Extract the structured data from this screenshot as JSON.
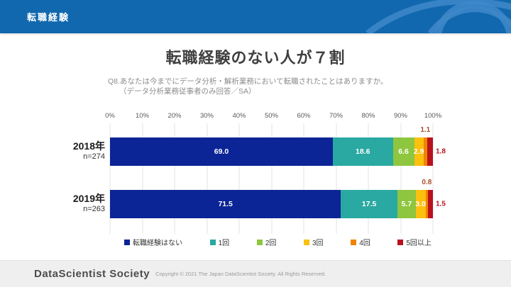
{
  "header": {
    "title": "転職経験"
  },
  "colors": {
    "header_bg": "#1168ae",
    "header_deco": "#3e88c9",
    "footer_bg": "#efefef",
    "title_text": "#3f3f3f",
    "grid": "#e3e3e3"
  },
  "main": {
    "title": "転職経験のない人が７割",
    "subtitle_line1": "Q8.あなたは今までにデータ分析・解析業務において転職されたことはありますか。",
    "subtitle_line2": "（データ分析業務従事者のみ回答／SA）"
  },
  "chart_data": {
    "type": "bar",
    "orientation": "horizontal",
    "stacked": true,
    "grid": true,
    "legend_position": "bottom",
    "xlim": [
      0,
      100
    ],
    "x_ticks": [
      "0%",
      "10%",
      "20%",
      "30%",
      "40%",
      "50%",
      "60%",
      "70%",
      "80%",
      "90%",
      "100%"
    ],
    "series_labels": [
      "転職経験はない",
      "1回",
      "2回",
      "3回",
      "4回",
      "5回以上"
    ],
    "series_colors": [
      "#0b2496",
      "#2aa8a2",
      "#8ec63f",
      "#fcc00e",
      "#f08300",
      "#b9121f"
    ],
    "outside_label_colors": {
      "above": "#a8502a",
      "right": "#b9121f"
    },
    "rows": [
      {
        "label": "2018年",
        "n_label": "n=274",
        "values": [
          69.0,
          18.6,
          6.6,
          2.9,
          1.1,
          1.8
        ]
      },
      {
        "label": "2019年",
        "n_label": "n=263",
        "values": [
          71.5,
          17.5,
          5.7,
          3.0,
          0.8,
          1.5
        ]
      }
    ]
  },
  "footer": {
    "brand": "DataScientist  Society",
    "copyright": "Copyright © 2021 The Japan DataScientist Society. All Rights Reserved."
  }
}
